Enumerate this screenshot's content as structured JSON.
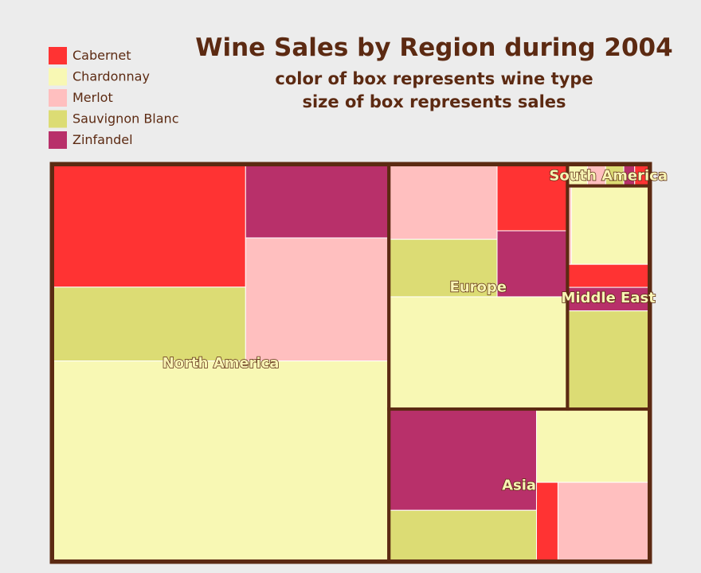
{
  "chart_data": {
    "type": "treemap",
    "title": "Wine Sales by Region during 2004",
    "subtitle_lines": [
      "color of box represents wine type",
      "size of box represents sales"
    ],
    "legend": {
      "position": "top-left",
      "entries": [
        {
          "name": "Cabernet",
          "color": "#ff3333"
        },
        {
          "name": "Chardonnay",
          "color": "#f8f8b4"
        },
        {
          "name": "Merlot",
          "color": "#ffbfbf"
        },
        {
          "name": "Sauvignon Blanc",
          "color": "#dcdc74"
        },
        {
          "name": "Zinfandel",
          "color": "#b8306a"
        }
      ]
    },
    "units": "relative",
    "regions": [
      {
        "name": "North America",
        "sales": [
          {
            "wine": "Cabernet",
            "value": 6.15
          },
          {
            "wine": "Sauvignon Blanc",
            "value": 3.71
          },
          {
            "wine": "Zinfandel",
            "value": 2.73
          },
          {
            "wine": "Merlot",
            "value": 4.59
          },
          {
            "wine": "Chardonnay",
            "value": 17.52
          }
        ]
      },
      {
        "name": "Europe",
        "sales": [
          {
            "wine": "Merlot",
            "value": 2.1
          },
          {
            "wine": "Sauvignon Blanc",
            "value": 1.62
          },
          {
            "wine": "Cabernet",
            "value": 1.21
          },
          {
            "wine": "Zinfandel",
            "value": 1.21
          },
          {
            "wine": "Chardonnay",
            "value": 5.22
          }
        ]
      },
      {
        "name": "South America",
        "sales": [
          {
            "wine": "Chardonnay",
            "value": 0.11
          },
          {
            "wine": "Merlot",
            "value": 0.1
          },
          {
            "wine": "Sauvignon Blanc",
            "value": 0.1
          },
          {
            "wine": "Zinfandel",
            "value": 0.06
          },
          {
            "wine": "Cabernet",
            "value": 0.08
          }
        ]
      },
      {
        "name": "Middle East",
        "sales": [
          {
            "wine": "Merlot",
            "value": 0.08
          },
          {
            "wine": "Chardonnay",
            "value": 1.59
          },
          {
            "wine": "Cabernet",
            "value": 0.49
          },
          {
            "wine": "Zinfandel",
            "value": 0.5
          },
          {
            "wine": "Sauvignon Blanc",
            "value": 2.09
          }
        ]
      },
      {
        "name": "Asia",
        "sales": [
          {
            "wine": "Zinfandel",
            "value": 3.89
          },
          {
            "wine": "Sauvignon Blanc",
            "value": 1.95
          },
          {
            "wine": "Chardonnay",
            "value": 2.15
          },
          {
            "wine": "Cabernet",
            "value": 0.44
          },
          {
            "wine": "Merlot",
            "value": 1.87
          }
        ]
      }
    ]
  },
  "colors": {
    "background": "#ececec",
    "frame": "#5c2a12",
    "text": "#5c2a12",
    "divider": "#ffffff"
  }
}
